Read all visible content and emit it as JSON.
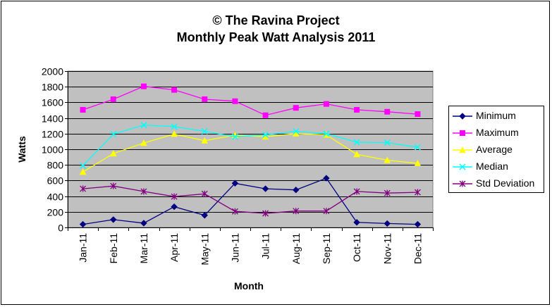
{
  "title": {
    "line1": "© The Ravina Project",
    "line2": "Monthly Peak Watt Analysis 2011"
  },
  "chart_data": {
    "type": "line",
    "title": "© The Ravina Project Monthly Peak Watt Analysis 2011",
    "xlabel": "Month",
    "ylabel": "Watts",
    "ylim": [
      0,
      2000
    ],
    "ytick_step": 200,
    "yticks": [
      "0",
      "200",
      "400",
      "600",
      "800",
      "1000",
      "1200",
      "1400",
      "1600",
      "1800",
      "2000"
    ],
    "grid": true,
    "plot_background": "#c0c0c0",
    "legend_position": "right",
    "categories": [
      "Jan-11",
      "Feb-11",
      "Mar-11",
      "Apr-11",
      "May-11",
      "Jun-11",
      "Jul-11",
      "Aug-11",
      "Sep-11",
      "Oct-11",
      "Nov-11",
      "Dec-11"
    ],
    "series": [
      {
        "name": "Minimum",
        "color": "#000080",
        "marker": "diamond",
        "values": [
          40,
          100,
          55,
          265,
          155,
          565,
          495,
          480,
          630,
          65,
          50,
          40
        ]
      },
      {
        "name": "Maximum",
        "color": "#ff00ff",
        "marker": "square",
        "values": [
          1505,
          1640,
          1805,
          1760,
          1640,
          1615,
          1435,
          1530,
          1580,
          1505,
          1480,
          1450
        ]
      },
      {
        "name": "Average",
        "color": "#ffff00",
        "marker": "triangle",
        "values": [
          710,
          945,
          1080,
          1195,
          1110,
          1180,
          1160,
          1200,
          1185,
          935,
          860,
          820
        ]
      },
      {
        "name": "Median",
        "color": "#00ffff",
        "marker": "x",
        "values": [
          790,
          1195,
          1310,
          1290,
          1230,
          1160,
          1185,
          1230,
          1200,
          1090,
          1085,
          1025
        ]
      },
      {
        "name": "Std Deviation",
        "color": "#800080",
        "marker": "star",
        "values": [
          495,
          530,
          460,
          395,
          430,
          205,
          180,
          210,
          210,
          460,
          440,
          450
        ]
      }
    ]
  }
}
